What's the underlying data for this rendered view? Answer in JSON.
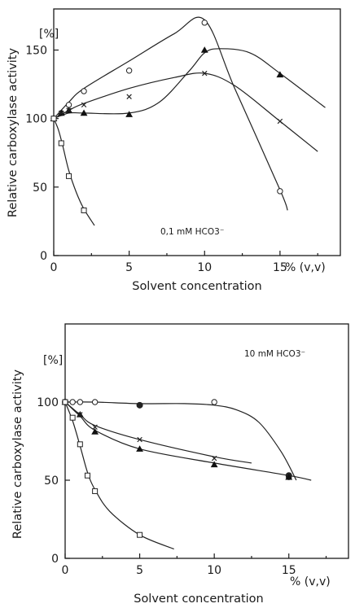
{
  "chart_data": [
    {
      "type": "line",
      "ylabel": "Relative carboxylase activity",
      "xlabel": "Solvent concentration",
      "yunit": "[%]",
      "xunit": "% (v,v)",
      "annotation": "0,1 mM HCO3⁻",
      "xlim": [
        0,
        19
      ],
      "ylim": [
        0,
        180
      ],
      "xticks": [
        0,
        5,
        10,
        15
      ],
      "xtick_labels": [
        "0",
        "5",
        "10",
        "15"
      ],
      "yticks": [
        0,
        50,
        100,
        150
      ],
      "ytick_labels": [
        "0",
        "50",
        "100",
        "150"
      ],
      "series": [
        {
          "marker": "circle-open",
          "x": [
            0,
            0.5,
            1,
            2,
            5,
            10,
            15
          ],
          "y": [
            100,
            104,
            110,
            120,
            135,
            170,
            47
          ],
          "curve_x": [
            0,
            1,
            2,
            5,
            8,
            10,
            12,
            15,
            15.5
          ],
          "curve_y": [
            100,
            112,
            122,
            142,
            162,
            172,
            122,
            48,
            33
          ]
        },
        {
          "marker": "triangle-filled",
          "x": [
            0,
            0.5,
            1,
            2,
            5,
            10,
            15
          ],
          "y": [
            100,
            104,
            106,
            104,
            103,
            150,
            132
          ],
          "curve_x": [
            0,
            1,
            2,
            5,
            7,
            9,
            10,
            11,
            13,
            15,
            18
          ],
          "curve_y": [
            100,
            104,
            104,
            104,
            112,
            135,
            148,
            151,
            148,
            133,
            108
          ]
        },
        {
          "marker": "cross",
          "x": [
            0,
            0.5,
            1,
            2,
            5,
            10,
            15
          ],
          "y": [
            100,
            104,
            106,
            110,
            116,
            133,
            98
          ],
          "curve_x": [
            0,
            1,
            2,
            5,
            8,
            10,
            12,
            15,
            17.5
          ],
          "curve_y": [
            100,
            106,
            111,
            122,
            130,
            133,
            124,
            98,
            76
          ]
        },
        {
          "marker": "square-open",
          "x": [
            0,
            0.5,
            1,
            2
          ],
          "y": [
            100,
            82,
            58,
            33
          ],
          "curve_x": [
            0,
            0.3,
            0.6,
            1,
            1.5,
            2,
            2.7
          ],
          "curve_y": [
            100,
            92,
            80,
            62,
            46,
            34,
            22
          ]
        }
      ]
    },
    {
      "type": "line",
      "ylabel": "Relative carboxylase activity",
      "xlabel": "Solvent concentration",
      "yunit": "[%]",
      "xunit": "% (v,v)",
      "annotation": "10 mM HCO3⁻",
      "xlim": [
        0,
        19
      ],
      "ylim": [
        0,
        150
      ],
      "xticks": [
        0,
        5,
        10,
        15
      ],
      "xtick_labels": [
        "0",
        "5",
        "10",
        "15"
      ],
      "yticks": [
        0,
        50,
        100
      ],
      "ytick_labels": [
        "0",
        "50",
        "100"
      ],
      "series": [
        {
          "marker": "circle-open",
          "x": [
            0,
            0.5,
            1,
            2,
            10,
            15
          ],
          "y": [
            100,
            100,
            100,
            100,
            100,
            52
          ],
          "curve_x": [
            0,
            2,
            5,
            8,
            10,
            11.5,
            13,
            14.5,
            15.5
          ],
          "curve_y": [
            100,
            100,
            99,
            99,
            98,
            95,
            87,
            68,
            50
          ]
        },
        {
          "marker": "circle-filled",
          "x": [
            0,
            5,
            15
          ],
          "y": [
            100,
            98,
            53
          ],
          "curve_x": [],
          "curve_y": []
        },
        {
          "marker": "triangle-filled",
          "x": [
            0,
            1,
            2,
            5,
            10,
            15
          ],
          "y": [
            100,
            92,
            81,
            70,
            60,
            52
          ],
          "curve_x": [
            0,
            1,
            2,
            5,
            10,
            15,
            16.5
          ],
          "curve_y": [
            100,
            91,
            82,
            70,
            61,
            53,
            50
          ]
        },
        {
          "marker": "cross",
          "x": [
            0,
            1,
            2,
            5,
            10
          ],
          "y": [
            100,
            92,
            84,
            76,
            64
          ],
          "curve_x": [
            0,
            1,
            2,
            5,
            10,
            12.5
          ],
          "curve_y": [
            100,
            92,
            85,
            76,
            65,
            61
          ]
        },
        {
          "marker": "square-open",
          "x": [
            0,
            0.5,
            1,
            1.5,
            2,
            5
          ],
          "y": [
            100,
            90,
            73,
            53,
            43,
            15
          ],
          "curve_x": [
            0,
            0.5,
            1,
            1.5,
            2,
            3,
            5,
            7.3
          ],
          "curve_y": [
            100,
            88,
            72,
            55,
            44,
            30,
            15,
            6
          ]
        }
      ]
    }
  ]
}
